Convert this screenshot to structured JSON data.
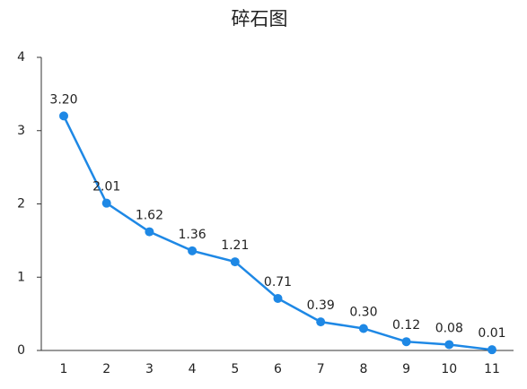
{
  "chart_data": {
    "type": "line",
    "title": "碎石图",
    "categories": [
      "1",
      "2",
      "3",
      "4",
      "5",
      "6",
      "7",
      "8",
      "9",
      "10",
      "11"
    ],
    "values": [
      3.2,
      2.01,
      1.62,
      1.36,
      1.21,
      0.71,
      0.39,
      0.3,
      0.12,
      0.08,
      0.01
    ],
    "value_labels": [
      "3.20",
      "2.01",
      "1.62",
      "1.36",
      "1.21",
      "0.71",
      "0.39",
      "0.30",
      "0.12",
      "0.08",
      "0.01"
    ],
    "color": "#1e88e5",
    "ylim": [
      0,
      4
    ],
    "yticks": [
      0,
      1,
      2,
      3,
      4
    ],
    "grid": false
  }
}
